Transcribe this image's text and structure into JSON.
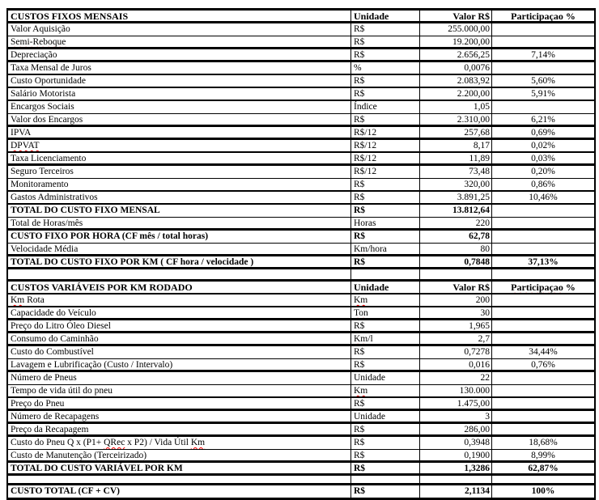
{
  "colors": {
    "text": "#000000",
    "border": "#000000",
    "background": "#ffffff",
    "spellcheck_underline": "#ff0000"
  },
  "stray_period": ".",
  "document": {
    "tables": [
      {
        "header": {
          "title": "CUSTOS FIXOS MENSAIS",
          "unit": "Unidade",
          "value": "Valor R$",
          "share": [
            [
              "Participaçao",
              true
            ],
            [
              " %",
              false
            ]
          ],
          "bb": 3
        },
        "rows": [
          {
            "label": "Valor Aquisição",
            "unit": "R$",
            "value": "255.000,00",
            "share": "",
            "bold": false,
            "bb": 1
          },
          {
            "label": [
              [
                "Semi-Reboque",
                true
              ]
            ],
            "unit": "R$",
            "value": "19.200,00",
            "share": "",
            "bold": false,
            "bb": 3
          },
          {
            "label": "Depreciação",
            "unit": "R$",
            "value": "2.656,25",
            "share": "7,14%",
            "bold": false,
            "bb": 3
          },
          {
            "label": "Taxa Mensal de Juros",
            "unit": "%",
            "value": "0,0076",
            "share": "",
            "bold": false,
            "bb": 2
          },
          {
            "label": "Custo Oportunidade",
            "unit": "R$",
            "value": "2.083,92",
            "share": "5,60%",
            "bold": false,
            "bb": 2
          },
          {
            "label": "Salário Motorista",
            "unit": "R$",
            "value": "2.200,00",
            "share": "5,91%",
            "bold": false,
            "bb": 2
          },
          {
            "label": "Encargos Sociais",
            "unit": "Índice",
            "value": "1,05",
            "share": "",
            "bold": false,
            "bb": 1
          },
          {
            "label": "Valor dos Encargos",
            "unit": "R$",
            "value": "2.310,00",
            "share": "6,21%",
            "bold": false,
            "bb": 3
          },
          {
            "label": "IPVA",
            "unit": "R$/12",
            "value": "257,68",
            "share": "0,69%",
            "bold": false,
            "bb": 3
          },
          {
            "label": [
              [
                "DPVAT",
                true
              ]
            ],
            "unit": "R$/12",
            "value": "8,17",
            "share": "0,02%",
            "bold": false,
            "bb": 2
          },
          {
            "label": "Taxa Licenciamento",
            "unit": "R$/12",
            "value": "11,89",
            "share": "0,03%",
            "bold": false,
            "bb": 3
          },
          {
            "label": "Seguro Terceiros",
            "unit": "R$/12",
            "value": "73,48",
            "share": "0,20%",
            "bold": false,
            "bb": 1
          },
          {
            "label": "Monitoramento",
            "unit": "R$",
            "value": "320,00",
            "share": "0,86%",
            "bold": false,
            "bb": 2
          },
          {
            "label": "Gastos Administrativos",
            "unit": "R$",
            "value": "3.891,25",
            "share": "10,46%",
            "bold": false,
            "bb": 2
          },
          {
            "label": "TOTAL DO CUSTO FIXO MENSAL",
            "unit": "R$",
            "value": "13.812,64",
            "share": "",
            "bold": true,
            "bb": 1
          },
          {
            "label": "Total de Horas/mês",
            "unit": "Horas",
            "value": "220",
            "share": "",
            "bold": false,
            "bb": 3
          },
          {
            "label": "CUSTO FIXO POR HORA (CF mês / total horas)",
            "unit": "R$",
            "value": "62,78",
            "share": "",
            "bold": true,
            "bb": 1
          },
          {
            "label": "Velocidade Média",
            "unit": [
              [
                "Km",
                true
              ],
              [
                "/hora",
                false
              ]
            ],
            "value": "80",
            "share": "",
            "bold": false,
            "bb": 3
          },
          {
            "label": "TOTAL DO CUSTO FIXO POR KM ( CF hora /  velocidade )",
            "unit": "R$",
            "value": "0,7848",
            "share": "37,13%",
            "bold": true,
            "bb": 3
          }
        ]
      },
      {
        "header": {
          "title": "CUSTOS VARIÁVEIS POR KM RODADO",
          "unit": "Unidade",
          "value": "Valor R$",
          "share": [
            [
              "Participaçao",
              true
            ],
            [
              " %",
              false
            ]
          ],
          "bb": 2
        },
        "rows": [
          {
            "label": [
              [
                "Km",
                true
              ],
              [
                " Rota",
                false
              ]
            ],
            "unit": [
              [
                "Km",
                true
              ]
            ],
            "value": "200",
            "share": "",
            "bold": false,
            "bb": 2
          },
          {
            "label": "Capacidade do Veículo",
            "unit": [
              [
                "Ton",
                true
              ]
            ],
            "value": "30",
            "share": "",
            "bold": false,
            "bb": 3
          },
          {
            "label": "Preço do Litro Óleo Diesel",
            "unit": "R$",
            "value": "1,965",
            "share": "",
            "bold": false,
            "bb": 3
          },
          {
            "label": "Consumo do Caminhão",
            "unit": [
              [
                "Km",
                true
              ],
              [
                "/l",
                false
              ]
            ],
            "value": "2,7",
            "share": "",
            "bold": false,
            "bb": 3
          },
          {
            "label": "Custo do Combustível",
            "unit": "R$",
            "value": "0,7278",
            "share": "34,44%",
            "bold": false,
            "bb": 1
          },
          {
            "label": "Lavagem e Lubrificação (Custo / Intervalo)",
            "unit": "R$",
            "value": "0,016",
            "share": "0,76%",
            "bold": false,
            "bb": 3
          },
          {
            "label": "Número de Pneus",
            "unit": "Unidade",
            "value": "22",
            "share": "",
            "bold": false,
            "bb": 1
          },
          {
            "label": "Tempo de vida útil do pneu",
            "unit": [
              [
                "Km",
                true
              ]
            ],
            "value": "130.000",
            "share": "",
            "bold": false,
            "bb": 2
          },
          {
            "label": "Preço do Pneu",
            "unit": "R$",
            "value": "1.475,00",
            "share": "",
            "bold": false,
            "bb": 3
          },
          {
            "label": "Número de Recapagens",
            "unit": "Unidade",
            "value": "3",
            "share": "",
            "bold": false,
            "bb": 3
          },
          {
            "label": "Preço da Recapagem",
            "unit": "R$",
            "value": "286,00",
            "share": "",
            "bold": false,
            "bb": 3
          },
          {
            "label": [
              [
                "Custo do Pneu Q x (P1+ ",
                false
              ],
              [
                "QRec",
                true
              ],
              [
                " x P2) / Vida Útil ",
                false
              ],
              [
                "Km",
                true
              ]
            ],
            "unit": "R$",
            "value": "0,3948",
            "share": "18,68%",
            "bold": false,
            "bb": 1
          },
          {
            "label": "Custo de Manutenção (Terceirizado)",
            "unit": "R$",
            "value": "0,1900",
            "share": "8,99%",
            "bold": false,
            "bb": 3
          },
          {
            "label": "TOTAL DO CUSTO VARIÁVEL POR KM",
            "unit": "R$",
            "value": "1,3286",
            "share": "62,87%",
            "bold": true,
            "bb": 3
          }
        ]
      },
      {
        "header": null,
        "rows": [
          {
            "label": "CUSTO TOTAL (CF + CV)",
            "unit": "R$",
            "value": "2,1134",
            "share": "100%",
            "bold": true,
            "bb": 3,
            "tall": true
          }
        ]
      }
    ]
  }
}
